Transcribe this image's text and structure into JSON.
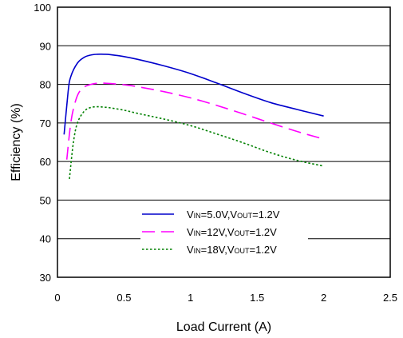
{
  "chart_data": {
    "type": "line",
    "xlabel": "Load Current (A)",
    "ylabel": "Efficiency (%)",
    "xlim": [
      0,
      2.5
    ],
    "ylim": [
      30,
      100
    ],
    "x_ticks": [
      "0",
      "0.5",
      "1",
      "1.5",
      "2",
      "2.5"
    ],
    "y_ticks": [
      "30",
      "40",
      "50",
      "60",
      "70",
      "80",
      "90",
      "100"
    ],
    "grid": "horizontal",
    "legend_position": "lower-center",
    "series": [
      {
        "name": "VIN=5.0V,VOUT=1.2V",
        "legend": {
          "a": "V",
          "a_sub": "IN",
          "b": "=5.0V,V",
          "b_sub": "OUT",
          "c": "=1.2V"
        },
        "color": "#0000cc",
        "dash": "solid",
        "x": [
          0.05,
          0.08,
          0.1,
          0.15,
          0.2,
          0.25,
          0.3,
          0.35,
          0.4,
          0.5,
          0.6,
          0.8,
          1.0,
          1.2,
          1.4,
          1.6,
          1.8,
          2.0
        ],
        "y": [
          67,
          78,
          82,
          85.5,
          87,
          87.6,
          87.8,
          87.8,
          87.7,
          87.2,
          86.5,
          84.8,
          82.8,
          80.3,
          77.7,
          75.3,
          73.5,
          71.8
        ]
      },
      {
        "name": "VIN=12V,VOUT=1.2V",
        "legend": {
          "a": "V",
          "a_sub": "IN",
          "b": "=12V,V",
          "b_sub": "OUT",
          "c": "=1.2V"
        },
        "color": "#ff00ff",
        "dash": "long-dash",
        "x": [
          0.07,
          0.1,
          0.13,
          0.16,
          0.2,
          0.25,
          0.3,
          0.35,
          0.4,
          0.5,
          0.6,
          0.8,
          1.0,
          1.2,
          1.4,
          1.6,
          1.8,
          2.0
        ],
        "y": [
          60.5,
          70,
          75,
          77.8,
          79.3,
          80,
          80.3,
          80.3,
          80.2,
          79.9,
          79.4,
          78.1,
          76.5,
          74.5,
          72.3,
          70,
          67.8,
          65.8
        ]
      },
      {
        "name": "VIN=18V,VOUT=1.2V",
        "legend": {
          "a": "V",
          "a_sub": "IN",
          "b": "=18V,V",
          "b_sub": "OUT",
          "c": "=1.2V"
        },
        "color": "#008000",
        "dash": "dotted",
        "x": [
          0.09,
          0.12,
          0.15,
          0.2,
          0.25,
          0.3,
          0.35,
          0.4,
          0.5,
          0.6,
          0.8,
          1.0,
          1.2,
          1.4,
          1.6,
          1.8,
          2.0
        ],
        "y": [
          55.5,
          65,
          70,
          73,
          74,
          74.2,
          74.1,
          73.9,
          73.3,
          72.5,
          71,
          69.3,
          67.1,
          64.8,
          62.3,
          60.3,
          58.8
        ]
      }
    ]
  }
}
